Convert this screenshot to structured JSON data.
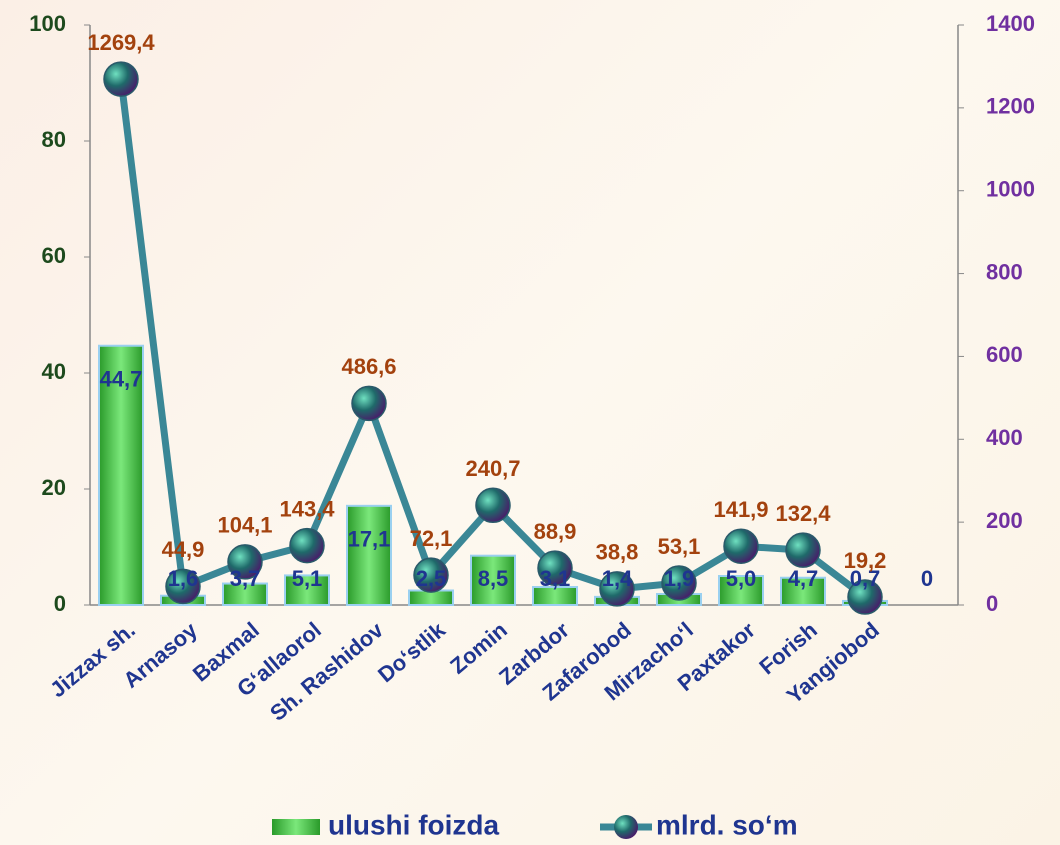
{
  "chart_data": {
    "type": "bar",
    "categories": [
      "Jizzax  sh.",
      "Arnasoy",
      "Baxmal",
      "G‘allaorol",
      "Sh. Rashidov",
      "Do‘stlik",
      "Zomin",
      "Zarbdor",
      "Zafarobod",
      "Mirzacho‘l",
      "Paxtakor",
      "Forish",
      "Yangiobod",
      null
    ],
    "series": [
      {
        "name": "ulushi foizda",
        "type": "bar",
        "color": "#3fbf3f",
        "values": [
          44.7,
          1.6,
          3.7,
          5.1,
          17.1,
          2.5,
          8.5,
          3.1,
          1.4,
          1.9,
          5.0,
          4.7,
          0.7,
          0
        ],
        "value_labels": [
          "44,7",
          "1,6",
          "3,7",
          "5,1",
          "17,1",
          "2,5",
          "8,5",
          "3,1",
          "1,4",
          "1,9",
          "5,0",
          "4,7",
          "0,7",
          "0"
        ]
      },
      {
        "name": "mlrd. so‘m",
        "type": "line",
        "axis": "y2",
        "color": "#3a8796",
        "values": [
          1269.4,
          44.9,
          104.1,
          143.4,
          486.6,
          72.1,
          240.7,
          88.9,
          38.8,
          53.1,
          141.9,
          132.4,
          19.2,
          null
        ],
        "value_labels": [
          "1269,4",
          "44,9",
          "104,1",
          "143,4",
          "486,6",
          "72,1",
          "240,7",
          "88,9",
          "38,8",
          "53,1",
          "141,9",
          "132,4",
          "19,2",
          null
        ]
      }
    ],
    "ylim": [
      0,
      100
    ],
    "yticks": [
      0,
      20,
      40,
      60,
      80,
      100
    ],
    "y2lim": [
      0,
      1400
    ],
    "y2ticks": [
      0,
      200,
      400,
      600,
      800,
      1000,
      1200,
      1400
    ],
    "legend": "bottom"
  }
}
